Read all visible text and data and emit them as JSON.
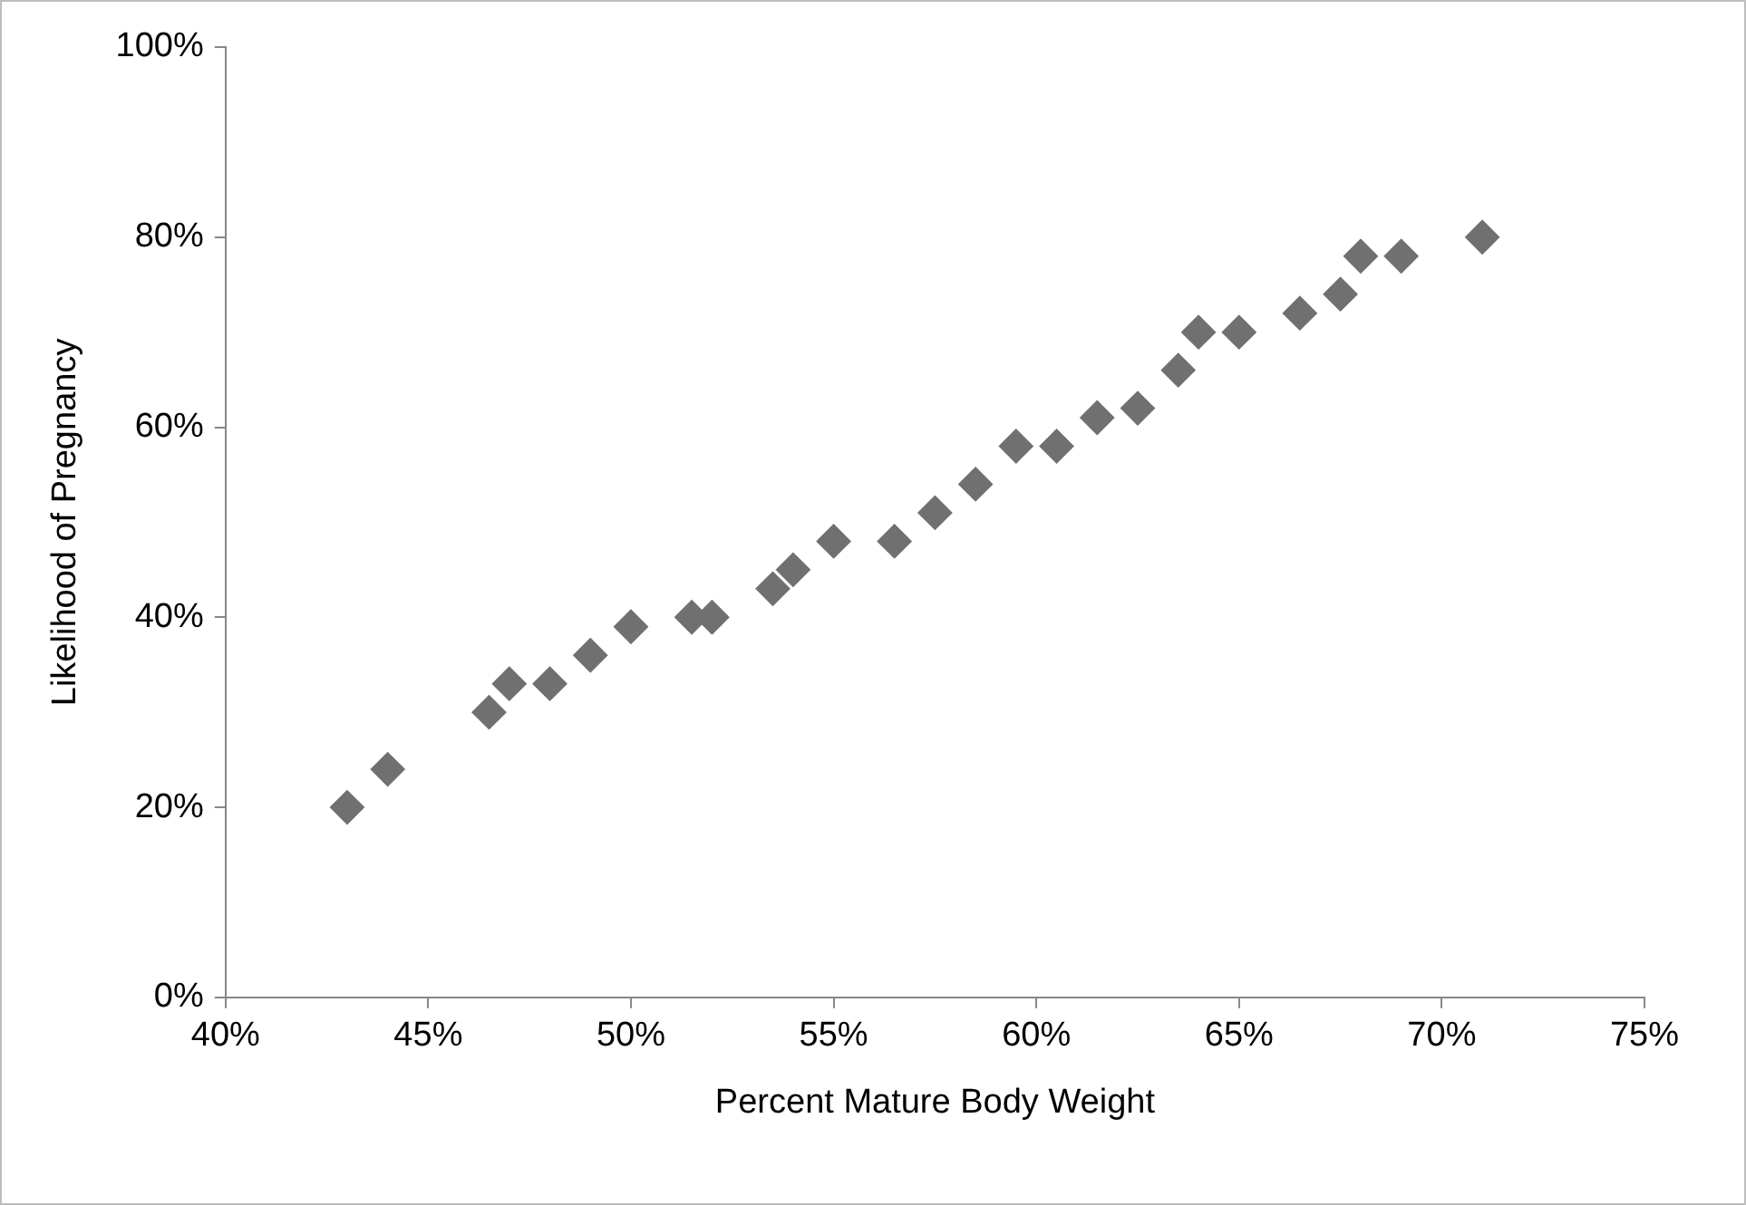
{
  "chart_data": {
    "type": "scatter",
    "xlabel": "Percent Mature Body Weight",
    "ylabel": "Likelihood of Pregnancy",
    "x": [
      43,
      44,
      46.5,
      47,
      48,
      49,
      50,
      51.5,
      52,
      53.5,
      54,
      55,
      56.5,
      57.5,
      58.5,
      59.5,
      60.5,
      61.5,
      62.5,
      63.5,
      64,
      65,
      66.5,
      67.5,
      68,
      69,
      71
    ],
    "values": [
      20,
      24,
      30,
      33,
      33,
      36,
      39,
      40,
      40,
      43,
      45,
      48,
      48,
      51,
      54,
      58,
      58,
      61,
      62,
      66,
      70,
      70,
      72,
      74,
      78,
      78,
      80
    ],
    "color": "#707070",
    "marker": "diamond",
    "grid": false,
    "legend": false,
    "xlim": [
      40,
      75
    ],
    "xticks": [
      {
        "value": 40,
        "label": "40%"
      },
      {
        "value": 45,
        "label": "45%"
      },
      {
        "value": 50,
        "label": "50%"
      },
      {
        "value": 55,
        "label": "55%"
      },
      {
        "value": 60,
        "label": "60%"
      },
      {
        "value": 65,
        "label": "65%"
      },
      {
        "value": 70,
        "label": "70%"
      },
      {
        "value": 75,
        "label": "75%"
      }
    ],
    "ylim": [
      0,
      100
    ],
    "yticks": [
      {
        "value": 0,
        "label": "0%"
      },
      {
        "value": 20,
        "label": "20%"
      },
      {
        "value": 40,
        "label": "40%"
      },
      {
        "value": 60,
        "label": "60%"
      },
      {
        "value": 80,
        "label": "80%"
      },
      {
        "value": 100,
        "label": "100%"
      }
    ]
  }
}
